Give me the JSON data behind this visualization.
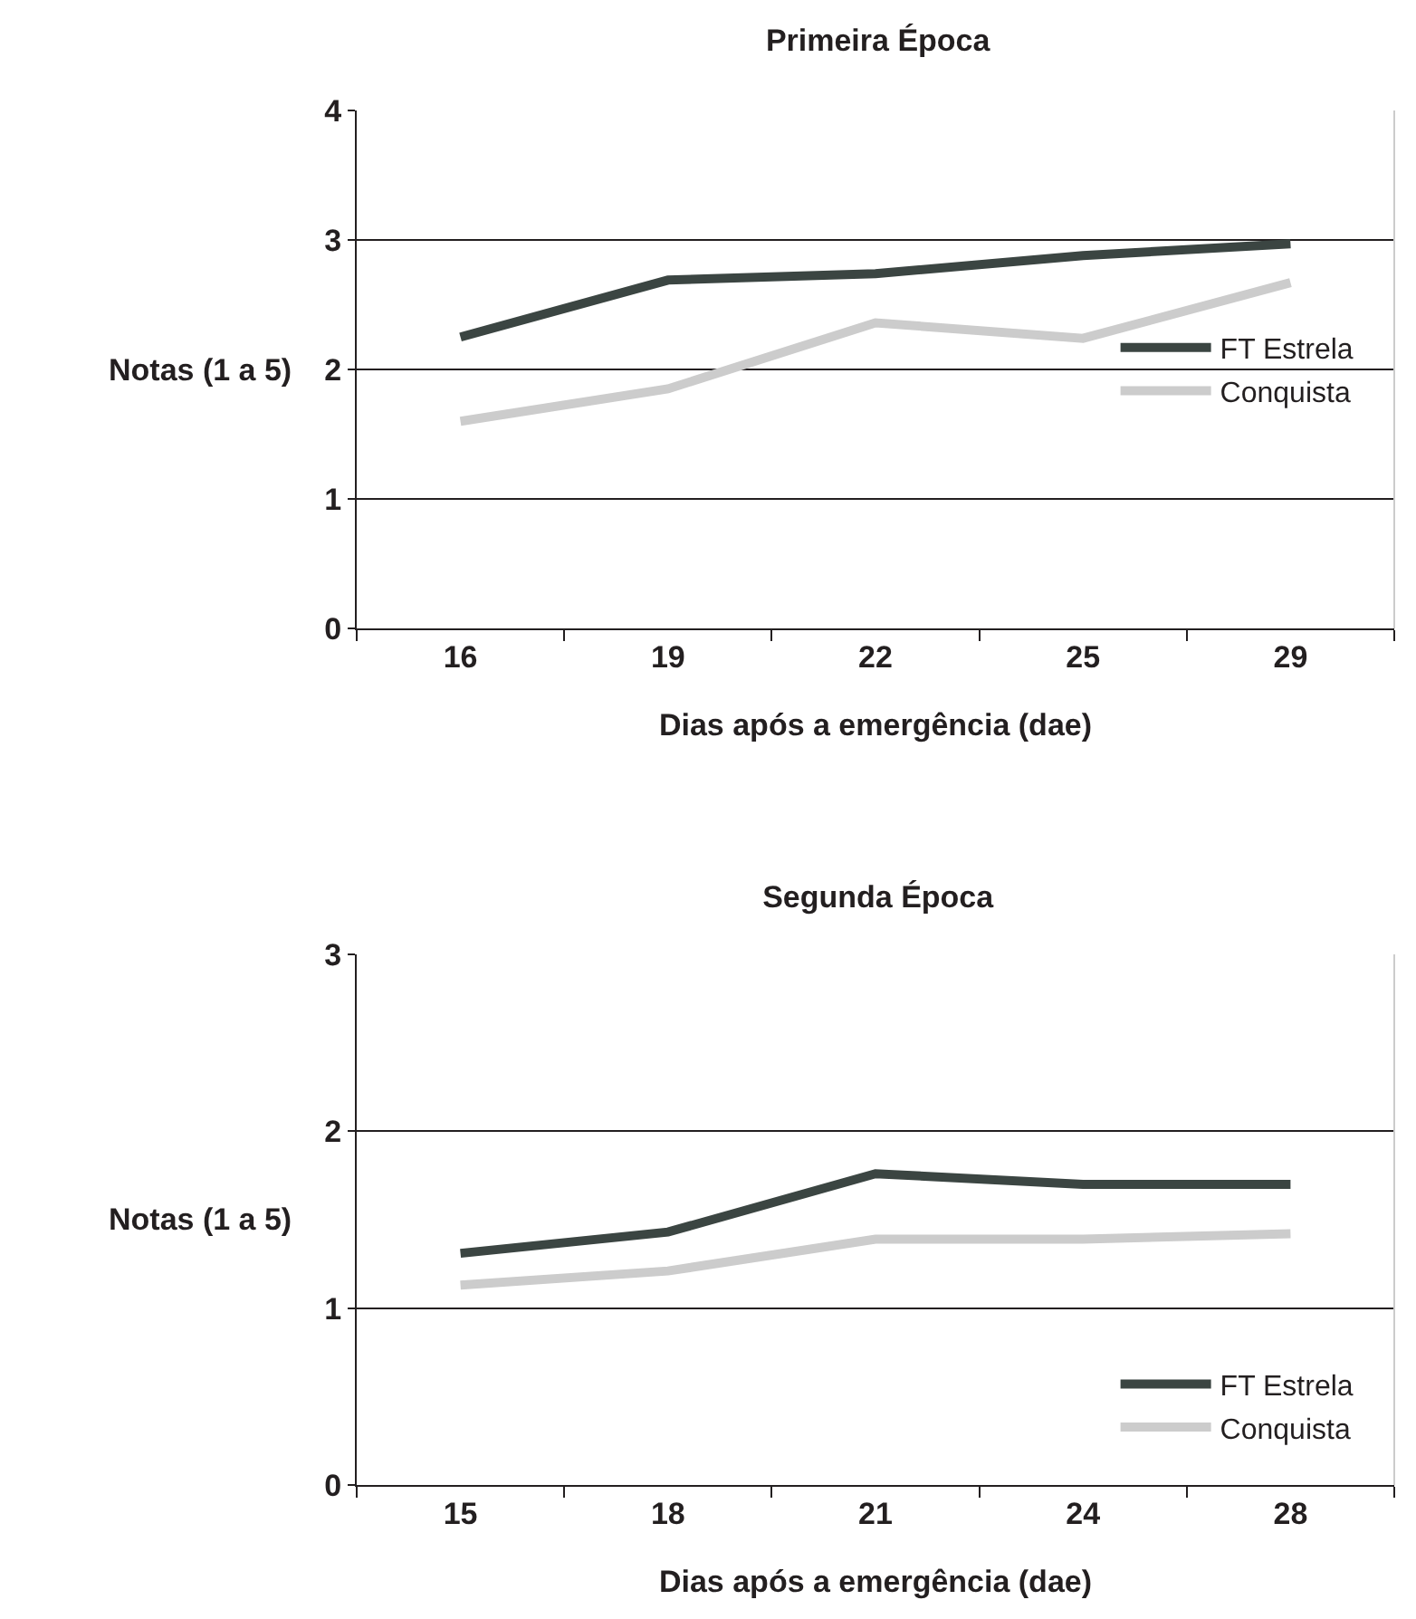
{
  "chart_data": [
    {
      "type": "line",
      "title": "Primeira Época",
      "xlabel": "Dias após a emergência (dae)",
      "ylabel": "Notas (1 a 5)",
      "categories": [
        "16",
        "19",
        "22",
        "25",
        "29"
      ],
      "series": [
        {
          "name": "FT Estrela",
          "color": "#3b4542",
          "values": [
            2.25,
            2.69,
            2.74,
            2.88,
            2.97
          ]
        },
        {
          "name": "Conquista",
          "color": "#cccccc",
          "values": [
            1.6,
            1.85,
            2.36,
            2.24,
            2.67
          ]
        }
      ],
      "ylim": [
        0,
        4
      ],
      "yticks": [
        0,
        1,
        2,
        3,
        4
      ],
      "grid": "y",
      "legend": "right",
      "marker": "none",
      "line_style": "solid"
    },
    {
      "type": "line",
      "title": "Segunda Época",
      "xlabel": "Dias após a emergência (dae)",
      "ylabel": "Notas (1 a 5)",
      "categories": [
        "15",
        "18",
        "21",
        "24",
        "28"
      ],
      "series": [
        {
          "name": "FT Estrela",
          "color": "#3b4542",
          "values": [
            1.31,
            1.43,
            1.76,
            1.7,
            1.7
          ]
        },
        {
          "name": "Conquista",
          "color": "#cccccc",
          "values": [
            1.13,
            1.21,
            1.39,
            1.39,
            1.42
          ]
        }
      ],
      "ylim": [
        0,
        3
      ],
      "yticks": [
        0,
        1,
        2,
        3
      ],
      "grid": "y",
      "legend": "bottom right",
      "marker": "none",
      "line_style": "solid"
    }
  ]
}
